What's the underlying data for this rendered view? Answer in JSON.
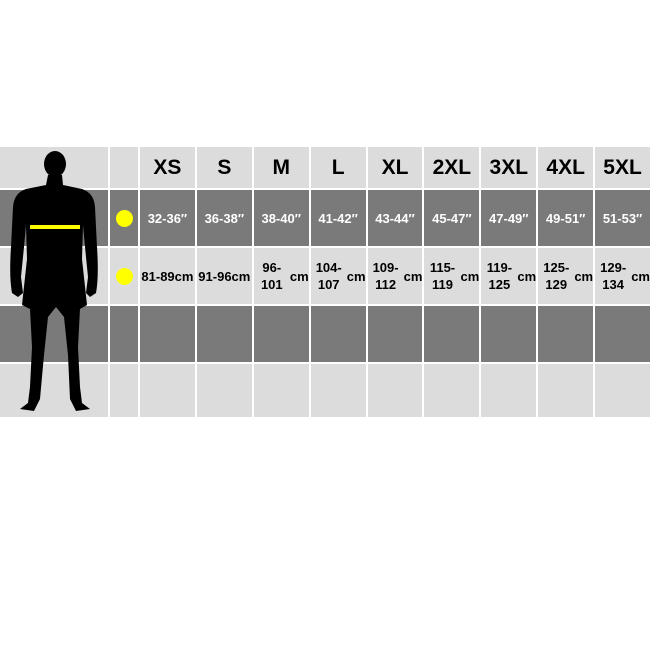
{
  "sizes": [
    "XS",
    "S",
    "M",
    "L",
    "XL",
    "2XL",
    "3XL",
    "4XL",
    "5XL"
  ],
  "chest_inches": [
    "32-36″",
    "36-38″",
    "38-40″",
    "41-42″",
    "43-44″",
    "45-47″",
    "47-49″",
    "49-51″",
    "51-53″"
  ],
  "chest_cm": [
    "81-89",
    "91-96",
    "96-101",
    "104-107",
    "109-112",
    "115-119",
    "119-125",
    "125-129",
    "129-134"
  ],
  "cm_unit": "cm",
  "colors": {
    "light": "#dcdcdc",
    "dark": "#7a7a7a",
    "marker": "#ffff00",
    "silhouette": "#000000"
  },
  "icons": {
    "silhouette": "man-silhouette-icon",
    "marker": "yellow-dot-icon"
  }
}
